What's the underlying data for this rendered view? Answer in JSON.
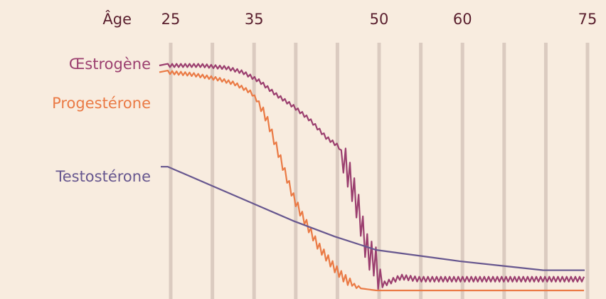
{
  "chart_data": {
    "type": "line",
    "title": "",
    "xlabel": "Âge",
    "ylabel": "",
    "x_ticks": [
      25,
      35,
      50,
      60,
      75
    ],
    "xlim": [
      25,
      75
    ],
    "ylim": [
      0,
      1
    ],
    "grid": true,
    "colors": {
      "background": "#f8ecdf",
      "grid": "#dbcbc0",
      "text": "#5a1f2e",
      "estrogen": "#9b3f6f",
      "progesterone": "#ea7a45",
      "testosterone": "#67578f"
    },
    "series": [
      {
        "name": "Œstrogène",
        "color": "#9b3f6f",
        "style": "wavy",
        "x": [
          25,
          29,
          32,
          34,
          36,
          38,
          40,
          42,
          44,
          45.5,
          46,
          47,
          48,
          48.5,
          49,
          50,
          50.5,
          51,
          53,
          55,
          60,
          65,
          70,
          75
        ],
        "y": [
          1.0,
          1.0,
          0.99,
          0.97,
          0.93,
          0.87,
          0.82,
          0.76,
          0.68,
          0.64,
          0.6,
          0.48,
          0.34,
          0.24,
          0.17,
          0.12,
          0.02,
          0.03,
          0.06,
          0.05,
          0.05,
          0.05,
          0.05,
          0.05
        ]
      },
      {
        "name": "Progestérone",
        "color": "#ea7a45",
        "style": "wavy",
        "x": [
          25,
          28,
          31,
          33,
          35,
          36,
          37,
          38,
          39,
          40,
          41,
          42,
          43,
          44,
          45,
          46,
          47,
          48,
          50,
          55,
          60,
          65,
          70,
          75
        ],
        "y": [
          0.97,
          0.96,
          0.94,
          0.92,
          0.88,
          0.83,
          0.75,
          0.64,
          0.53,
          0.42,
          0.34,
          0.27,
          0.2,
          0.15,
          0.1,
          0.06,
          0.03,
          0.01,
          0.0,
          0.0,
          0.0,
          0.0,
          0.0,
          0.0
        ]
      },
      {
        "name": "Testostérone",
        "color": "#67578f",
        "style": "smooth",
        "x": [
          25,
          30,
          35,
          40,
          45,
          50,
          55,
          60,
          65,
          70,
          75
        ],
        "y": [
          0.55,
          0.47,
          0.39,
          0.31,
          0.24,
          0.18,
          0.155,
          0.13,
          0.11,
          0.09,
          0.09
        ]
      }
    ]
  }
}
